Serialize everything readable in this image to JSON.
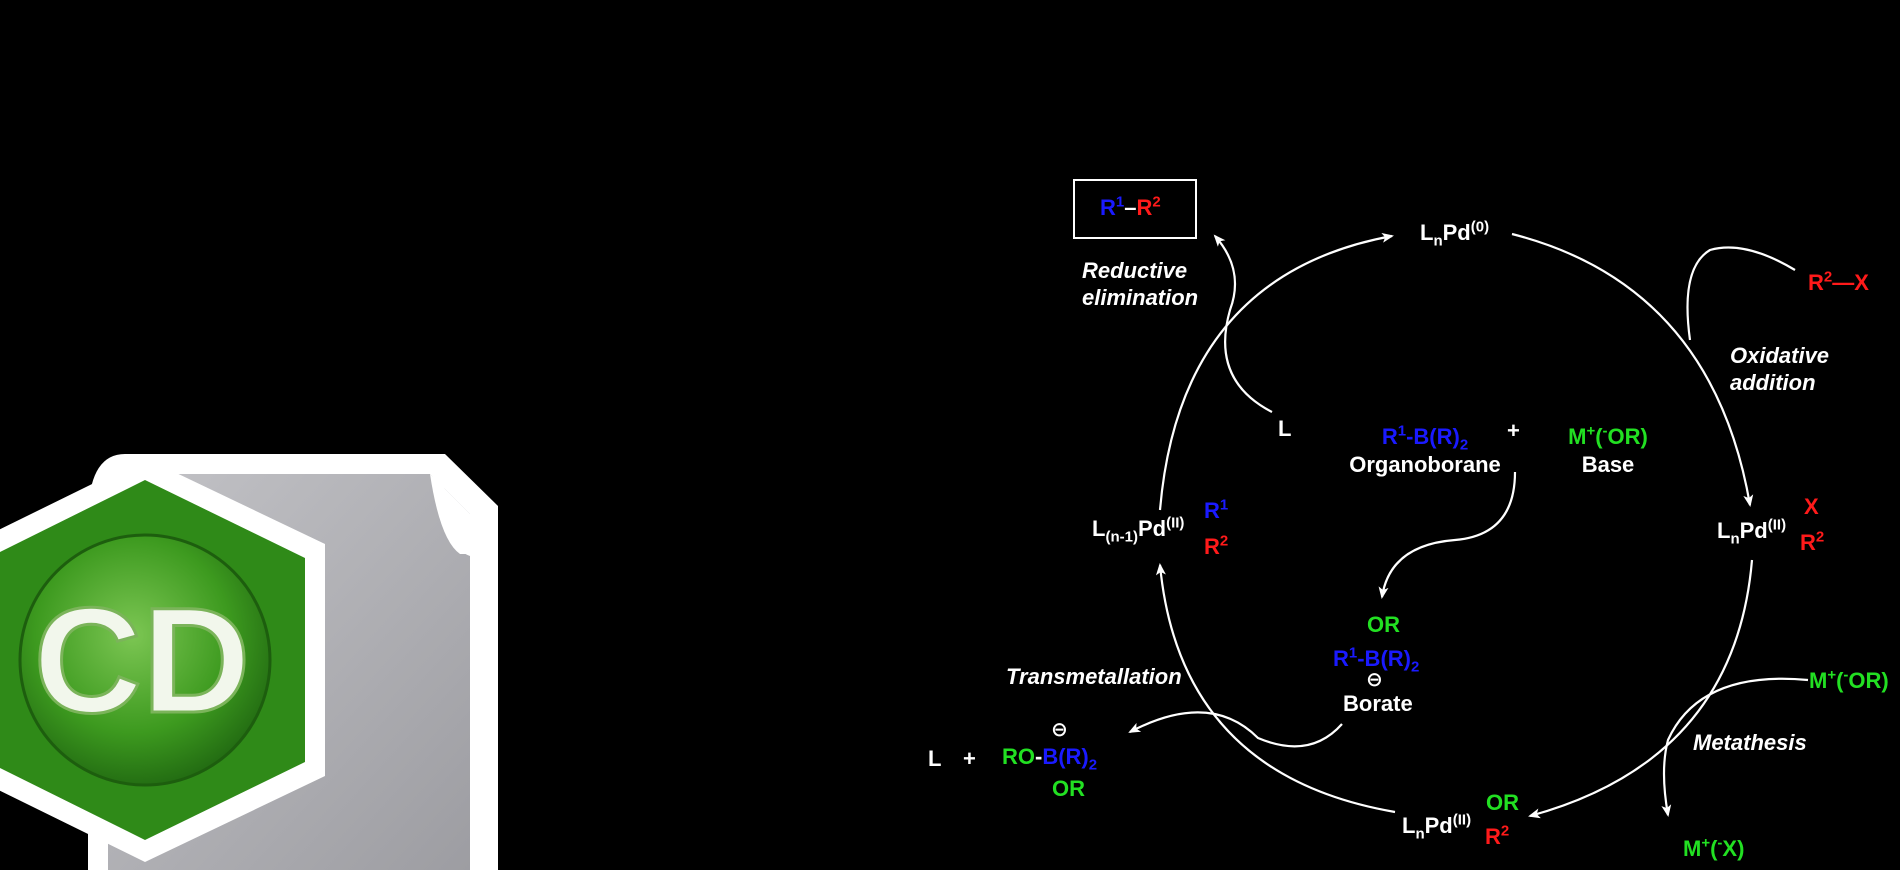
{
  "colors": {
    "background": "#000000",
    "text": "#ffffff",
    "organoboron_group": "#1a1aff",
    "halide_group": "#ff1a1a",
    "base_group": "#22e022",
    "logo_green": "#3d9a1f",
    "logo_gray": "#a9a9ad"
  },
  "logo": {
    "text": "CD",
    "icon": "chemdraw-document-icon"
  },
  "product": {
    "r1": "R",
    "r1_sup": "1",
    "dash": "–",
    "r2": "R",
    "r2_sup": "2"
  },
  "steps": {
    "reductive_elimination": [
      "Reductive",
      "elimination"
    ],
    "oxidative_addition": [
      "Oxidative",
      "addition"
    ],
    "transmetallation": "Transmetallation",
    "metathesis": "Metathesis"
  },
  "species": {
    "pd0": {
      "L": "L",
      "n": "n",
      "Pd": "Pd",
      "ox": "(0)"
    },
    "r2x": {
      "R": "R",
      "sup": "2",
      "dash": "—",
      "X": "X"
    },
    "pd_ox_add": {
      "L": "L",
      "n": "n",
      "Pd": "Pd",
      "ox": "(II)",
      "X": "X",
      "R": "R",
      "sup": "2"
    },
    "pd_metathesis": {
      "L": "L",
      "n": "n",
      "Pd": "Pd",
      "ox": "(II)",
      "OR": "OR",
      "R": "R",
      "sup": "2"
    },
    "pd_trans": {
      "L": "L",
      "sub": "(n-1)",
      "Pd": "Pd",
      "ox": "(II)",
      "R1": "R",
      "R1_sup": "1",
      "R2": "R",
      "R2_sup": "2"
    },
    "free_ligand": "L",
    "organoborane": {
      "formula_R": "R",
      "formula_sup": "1",
      "formula_rest": "-B(R)",
      "formula_sub": "2",
      "name": "Organoborane"
    },
    "plus": "+",
    "base": {
      "M": "M",
      "M_sup": "+",
      "paren_open": "(",
      "minus": "-",
      "OR": "OR)",
      "name": "Base"
    },
    "borate": {
      "OR": "OR",
      "R": "R",
      "sup": "1",
      "rest": "-B(R)",
      "sub": "2",
      "charge": "⊖",
      "name": "Borate"
    },
    "base_right": {
      "M": "M",
      "M_sup": "+",
      "paren_open": "(",
      "minus": "-",
      "OR": "OR)"
    },
    "salt": {
      "M": "M",
      "M_sup": "+",
      "paren_open": "(",
      "minus": "-",
      "X": "X)"
    },
    "byproduct": {
      "L": "L",
      "plus": "+",
      "RO": "RO",
      "B": "B(R)",
      "sub": "2",
      "OR": "OR",
      "charge": "⊖"
    }
  }
}
